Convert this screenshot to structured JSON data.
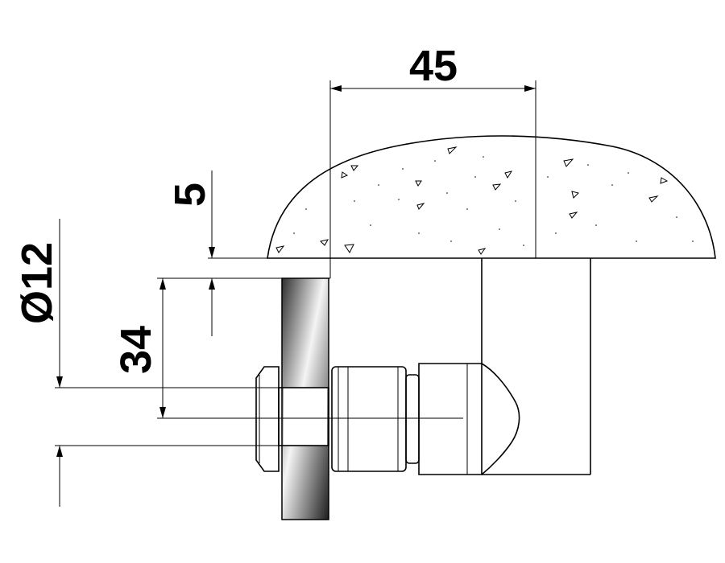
{
  "dimensions": {
    "width_label": "45",
    "top_offset_label": "5",
    "height_label": "34",
    "diameter_label": "Ø12"
  },
  "colors": {
    "line": "#000000",
    "background": "#ffffff",
    "glass_dark": "#3a3a3a",
    "glass_light": "#f2f2f2"
  }
}
